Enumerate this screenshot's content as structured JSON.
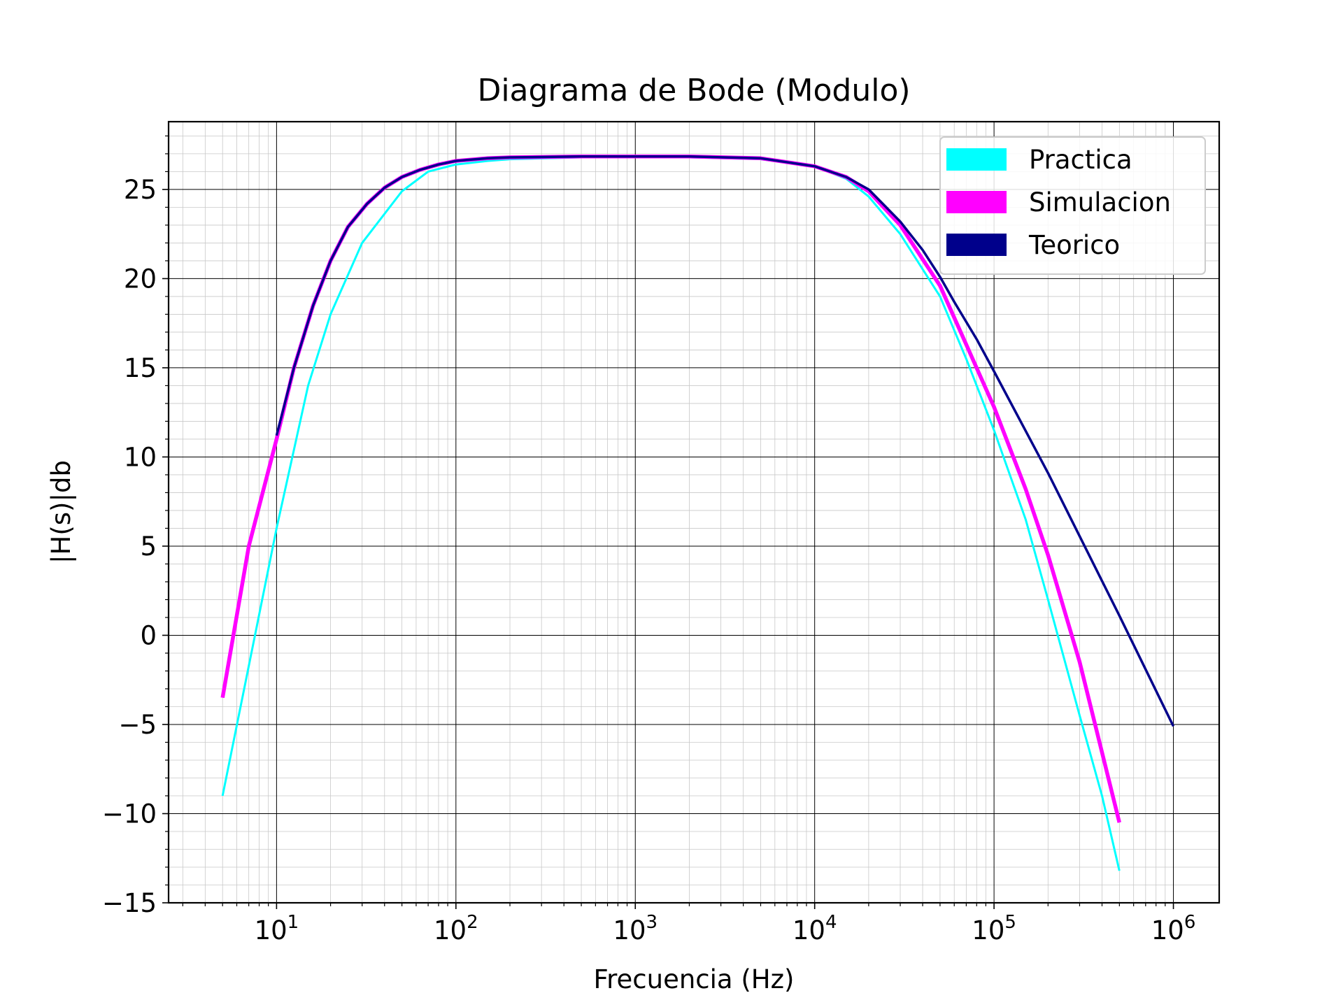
{
  "chart_data": {
    "type": "line",
    "title": "Diagrama de Bode (Modulo)",
    "xlabel": "Frecuencia (Hz)",
    "ylabel": "|H(s)|db",
    "x_scale": "log",
    "xlim": [
      2.5,
      1800000
    ],
    "ylim": [
      -15,
      28.8
    ],
    "x_ticks": [
      {
        "base": "10",
        "exp": "1",
        "value": 10
      },
      {
        "base": "10",
        "exp": "2",
        "value": 100
      },
      {
        "base": "10",
        "exp": "3",
        "value": 1000
      },
      {
        "base": "10",
        "exp": "4",
        "value": 10000
      },
      {
        "base": "10",
        "exp": "5",
        "value": 100000
      },
      {
        "base": "10",
        "exp": "6",
        "value": 1000000
      }
    ],
    "y_ticks": [
      {
        "label": "25",
        "value": 25
      },
      {
        "label": "20",
        "value": 20
      },
      {
        "label": "15",
        "value": 15
      },
      {
        "label": "10",
        "value": 10
      },
      {
        "label": "5",
        "value": 5
      },
      {
        "label": "0",
        "value": 0
      },
      {
        "label": "−5",
        "value": -5
      },
      {
        "label": "−10",
        "value": -10
      },
      {
        "label": "−15",
        "value": -15
      }
    ],
    "grid": true,
    "legend_position": "top-right",
    "series": [
      {
        "name": "Practica",
        "color": "#00ffff",
        "width": 3,
        "x": [
          5,
          10,
          15,
          20,
          30,
          50,
          70,
          100,
          150,
          200,
          500,
          1000,
          2000,
          5000,
          10000,
          15000,
          20000,
          30000,
          50000,
          70000,
          100000,
          150000,
          200000,
          300000,
          400000,
          500000
        ],
        "y": [
          -9,
          6,
          14,
          18,
          22,
          24.9,
          26,
          26.4,
          26.6,
          26.7,
          26.8,
          26.8,
          26.8,
          26.7,
          26.3,
          25.6,
          24.6,
          22.5,
          19,
          15.5,
          11.5,
          6.5,
          2,
          -4.5,
          -9,
          -13.2
        ]
      },
      {
        "name": "Simulacion",
        "color": "#ff00ff",
        "width": 5.5,
        "x": [
          5,
          7,
          10,
          12.5,
          16,
          20,
          25,
          32,
          40,
          50,
          63,
          80,
          100,
          150,
          200,
          500,
          1000,
          2000,
          5000,
          10000,
          15000,
          20000,
          30000,
          50000,
          70000,
          100000,
          150000,
          200000,
          300000,
          500000
        ],
        "y": [
          -3.5,
          5,
          11,
          15,
          18.5,
          21,
          22.9,
          24.2,
          25.1,
          25.7,
          26.1,
          26.4,
          26.6,
          26.75,
          26.8,
          26.85,
          26.85,
          26.85,
          26.75,
          26.3,
          25.7,
          24.9,
          23,
          19.6,
          16.3,
          12.8,
          8.2,
          4.5,
          -1.5,
          -10.5
        ]
      },
      {
        "name": "Teorico",
        "color": "#00008b",
        "width": 3.5,
        "x": [
          10,
          12.5,
          16,
          20,
          25,
          32,
          40,
          50,
          63,
          80,
          100,
          150,
          200,
          500,
          1000,
          2000,
          5000,
          10000,
          15000,
          20000,
          30000,
          40000,
          50000,
          60000,
          80000,
          100000,
          200000,
          500000,
          1000000
        ],
        "y": [
          11.2,
          15,
          18.5,
          21,
          22.9,
          24.2,
          25.1,
          25.7,
          26.1,
          26.4,
          26.6,
          26.75,
          26.8,
          26.85,
          26.85,
          26.85,
          26.75,
          26.3,
          25.7,
          25,
          23.2,
          21.6,
          20.1,
          18.7,
          16.6,
          14.8,
          9.1,
          1.1,
          -5.1
        ]
      }
    ]
  }
}
